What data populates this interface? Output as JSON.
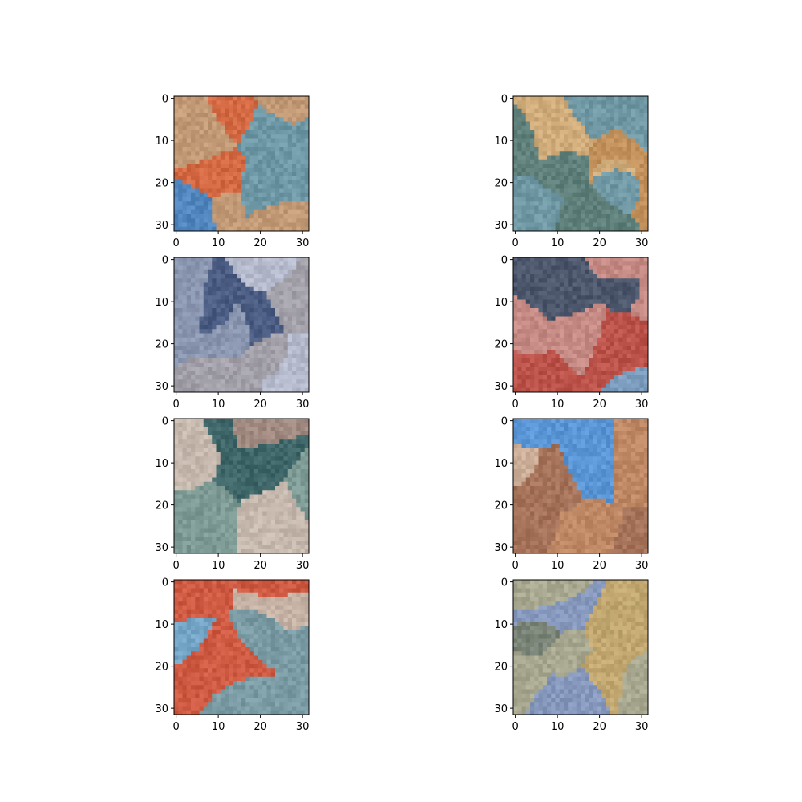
{
  "chart_data": {
    "type": "image_grid",
    "grid": {
      "rows": 4,
      "cols": 2
    },
    "image_size": [
      32,
      32
    ],
    "x_ticks": [
      0,
      10,
      20,
      30
    ],
    "y_ticks": [
      0,
      10,
      20,
      30
    ],
    "xlim": [
      -0.5,
      31.5
    ],
    "ylim": [
      31.5,
      -0.5
    ],
    "panels": [
      {
        "row": 0,
        "col": 0,
        "dominant_colors": [
          "#6f98a6",
          "#d79a6a",
          "#ec5d2a",
          "#4a82c4"
        ]
      },
      {
        "row": 0,
        "col": 1,
        "dominant_colors": [
          "#6f98a4",
          "#d8904a",
          "#e8b070",
          "#5b7a70"
        ]
      },
      {
        "row": 1,
        "col": 0,
        "dominant_colors": [
          "#8a96b0",
          "#c0c4d4",
          "#3c4e78",
          "#a8a2a6"
        ]
      },
      {
        "row": 1,
        "col": 1,
        "dominant_colors": [
          "#c68a84",
          "#6aa2cc",
          "#b8453c",
          "#2e4a66"
        ]
      },
      {
        "row": 2,
        "col": 0,
        "dominant_colors": [
          "#7e9a94",
          "#d8c0b4",
          "#a8847a",
          "#2f5a5e"
        ]
      },
      {
        "row": 2,
        "col": 1,
        "dominant_colors": [
          "#5a96d6",
          "#d88448",
          "#e8b488",
          "#b86a3a"
        ]
      },
      {
        "row": 3,
        "col": 0,
        "dominant_colors": [
          "#7a9aa4",
          "#e44a2a",
          "#d8b8a4",
          "#74a8d0"
        ]
      },
      {
        "row": 3,
        "col": 1,
        "dominant_colors": [
          "#a8a890",
          "#c8a868",
          "#6e7a70",
          "#7e94c8"
        ]
      }
    ]
  }
}
